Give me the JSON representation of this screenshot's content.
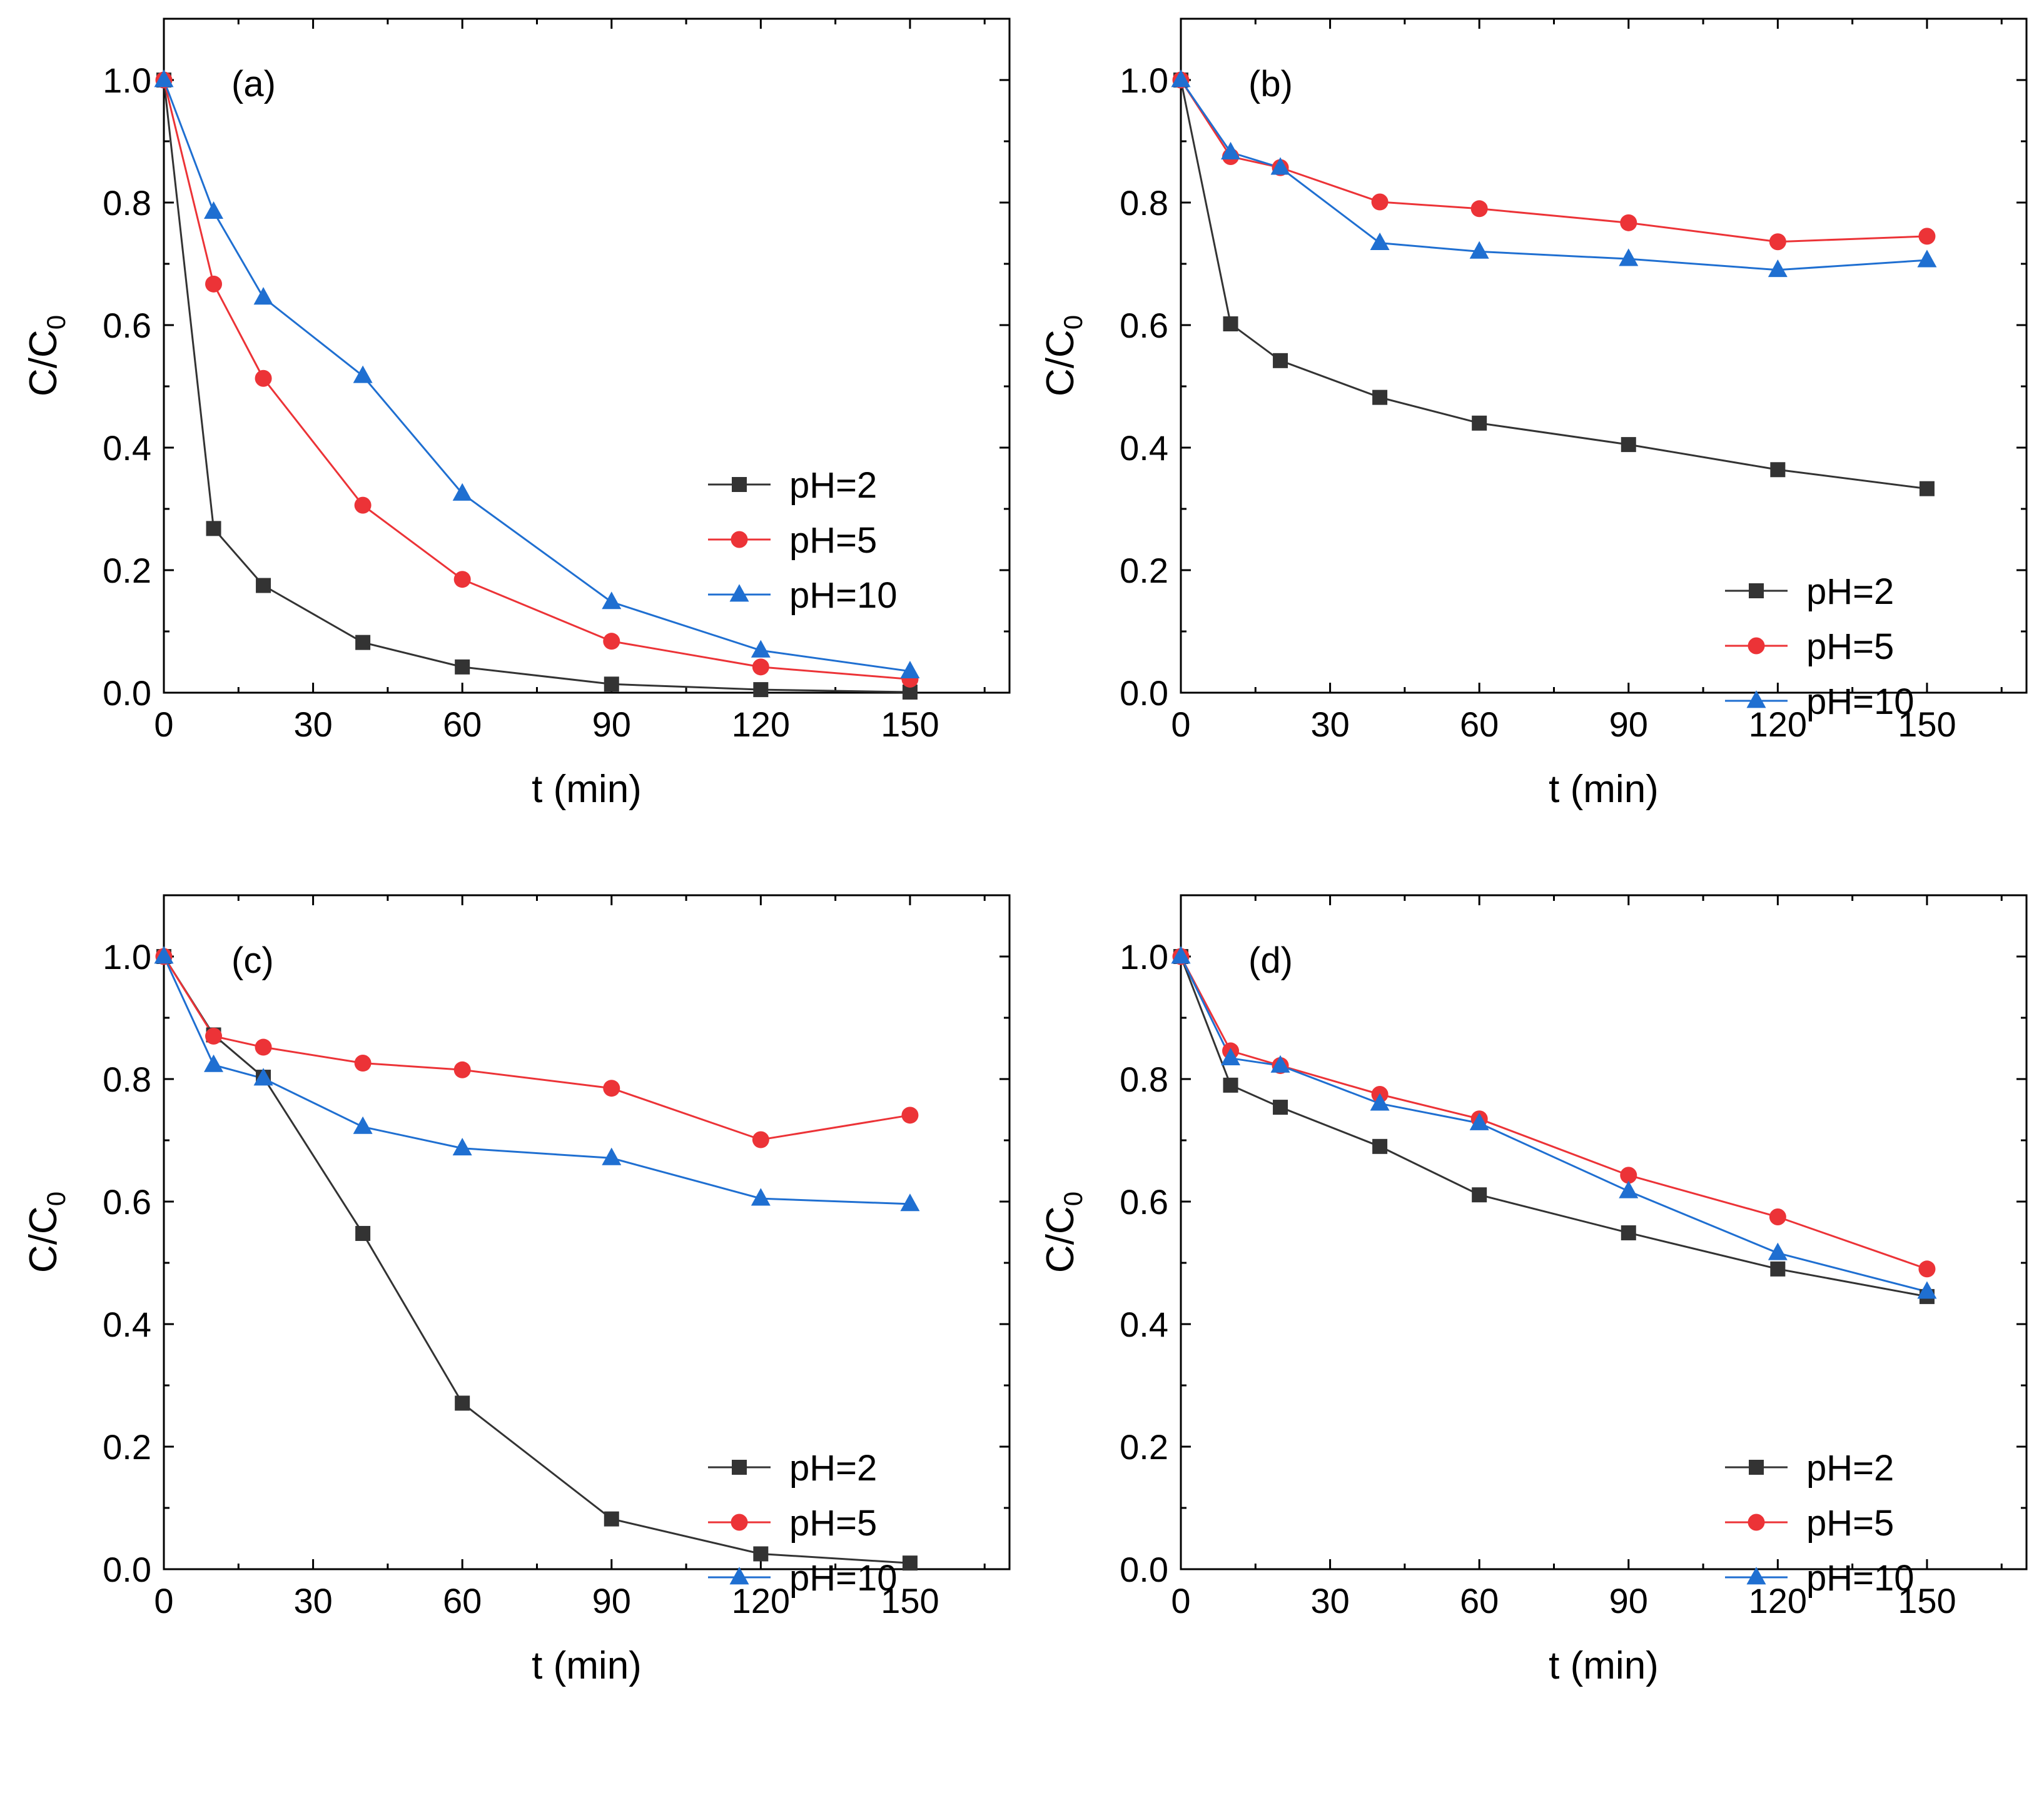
{
  "chart_data": [
    {
      "type": "line",
      "title": "",
      "panel_label": "(a)",
      "xlabel": "t (min)",
      "ylabel": "C/C",
      "ylabel_sub": "0",
      "xlim": [
        0,
        170
      ],
      "ylim": [
        0,
        1.1
      ],
      "xticks": [
        0,
        30,
        60,
        90,
        120,
        150
      ],
      "yticks": [
        0.0,
        0.2,
        0.4,
        0.6,
        0.8,
        1.0
      ],
      "xtick_labels": [
        "0",
        "30",
        "60",
        "90",
        "120",
        "150"
      ],
      "ytick_labels": [
        "0.0",
        "0.2",
        "0.4",
        "0.6",
        "0.8",
        "1.0"
      ],
      "legend_position": "center-right",
      "x": [
        0,
        10,
        20,
        40,
        60,
        90,
        120,
        150
      ],
      "series": [
        {
          "name": "pH=2",
          "marker": "square",
          "color": "#333333",
          "values": [
            1.0,
            0.268,
            0.175,
            0.082,
            0.042,
            0.014,
            0.005,
            0.001
          ]
        },
        {
          "name": "pH=5",
          "marker": "circle",
          "color": "#ec3337",
          "values": [
            1.0,
            0.667,
            0.513,
            0.306,
            0.185,
            0.084,
            0.042,
            0.022
          ]
        },
        {
          "name": "pH=10",
          "marker": "triangle",
          "color": "#1f6fd1",
          "values": [
            1.0,
            0.785,
            0.645,
            0.517,
            0.325,
            0.148,
            0.069,
            0.035
          ]
        }
      ]
    },
    {
      "type": "line",
      "title": "",
      "panel_label": "(b)",
      "xlabel": "t (min)",
      "ylabel": "C/C",
      "ylabel_sub": "0",
      "xlim": [
        0,
        170
      ],
      "ylim": [
        0,
        1.1
      ],
      "xticks": [
        0,
        30,
        60,
        90,
        120,
        150
      ],
      "yticks": [
        0.0,
        0.2,
        0.4,
        0.6,
        0.8,
        1.0
      ],
      "xtick_labels": [
        "0",
        "30",
        "60",
        "90",
        "120",
        "150"
      ],
      "ytick_labels": [
        "0.0",
        "0.2",
        "0.4",
        "0.6",
        "0.8",
        "1.0"
      ],
      "legend_position": "lower-right",
      "x": [
        0,
        10,
        20,
        40,
        60,
        90,
        120,
        150
      ],
      "series": [
        {
          "name": "pH=2",
          "marker": "square",
          "color": "#333333",
          "values": [
            1.0,
            0.602,
            0.542,
            0.482,
            0.44,
            0.405,
            0.364,
            0.333
          ]
        },
        {
          "name": "pH=5",
          "marker": "circle",
          "color": "#ec3337",
          "values": [
            1.0,
            0.875,
            0.857,
            0.801,
            0.79,
            0.767,
            0.736,
            0.745
          ]
        },
        {
          "name": "pH=10",
          "marker": "triangle",
          "color": "#1f6fd1",
          "values": [
            1.0,
            0.882,
            0.857,
            0.734,
            0.72,
            0.708,
            0.69,
            0.706
          ]
        }
      ]
    },
    {
      "type": "line",
      "title": "",
      "panel_label": "(c)",
      "xlabel": "t (min)",
      "ylabel": "C/C",
      "ylabel_sub": "0",
      "xlim": [
        0,
        170
      ],
      "ylim": [
        0,
        1.1
      ],
      "xticks": [
        0,
        30,
        60,
        90,
        120,
        150
      ],
      "yticks": [
        0.0,
        0.2,
        0.4,
        0.6,
        0.8,
        1.0
      ],
      "xtick_labels": [
        "0",
        "30",
        "60",
        "90",
        "120",
        "150"
      ],
      "ytick_labels": [
        "0.0",
        "0.2",
        "0.4",
        "0.6",
        "0.8",
        "1.0"
      ],
      "legend_position": "lower-right",
      "x": [
        0,
        10,
        20,
        40,
        60,
        90,
        120,
        150
      ],
      "series": [
        {
          "name": "pH=2",
          "marker": "square",
          "color": "#333333",
          "values": [
            1.0,
            0.872,
            0.803,
            0.548,
            0.271,
            0.082,
            0.025,
            0.01
          ]
        },
        {
          "name": "pH=5",
          "marker": "circle",
          "color": "#ec3337",
          "values": [
            1.0,
            0.87,
            0.852,
            0.826,
            0.815,
            0.785,
            0.701,
            0.741
          ]
        },
        {
          "name": "pH=10",
          "marker": "triangle",
          "color": "#1f6fd1",
          "values": [
            1.0,
            0.823,
            0.801,
            0.722,
            0.687,
            0.671,
            0.605,
            0.596
          ]
        }
      ]
    },
    {
      "type": "line",
      "title": "",
      "panel_label": "(d)",
      "xlabel": "t (min)",
      "ylabel": "C/C",
      "ylabel_sub": "0",
      "xlim": [
        0,
        170
      ],
      "ylim": [
        0,
        1.1
      ],
      "xticks": [
        0,
        30,
        60,
        90,
        120,
        150
      ],
      "yticks": [
        0.0,
        0.2,
        0.4,
        0.6,
        0.8,
        1.0
      ],
      "xtick_labels": [
        "0",
        "30",
        "60",
        "90",
        "120",
        "150"
      ],
      "ytick_labels": [
        "0.0",
        "0.2",
        "0.4",
        "0.6",
        "0.8",
        "1.0"
      ],
      "legend_position": "lower-right",
      "x": [
        0,
        10,
        20,
        40,
        60,
        90,
        120,
        150
      ],
      "series": [
        {
          "name": "pH=2",
          "marker": "square",
          "color": "#333333",
          "values": [
            1.0,
            0.79,
            0.754,
            0.69,
            0.611,
            0.549,
            0.49,
            0.445
          ]
        },
        {
          "name": "pH=5",
          "marker": "circle",
          "color": "#ec3337",
          "values": [
            1.0,
            0.846,
            0.822,
            0.775,
            0.735,
            0.643,
            0.575,
            0.49
          ]
        },
        {
          "name": "pH=10",
          "marker": "triangle",
          "color": "#1f6fd1",
          "values": [
            1.0,
            0.834,
            0.822,
            0.76,
            0.728,
            0.617,
            0.516,
            0.453
          ]
        }
      ]
    }
  ]
}
